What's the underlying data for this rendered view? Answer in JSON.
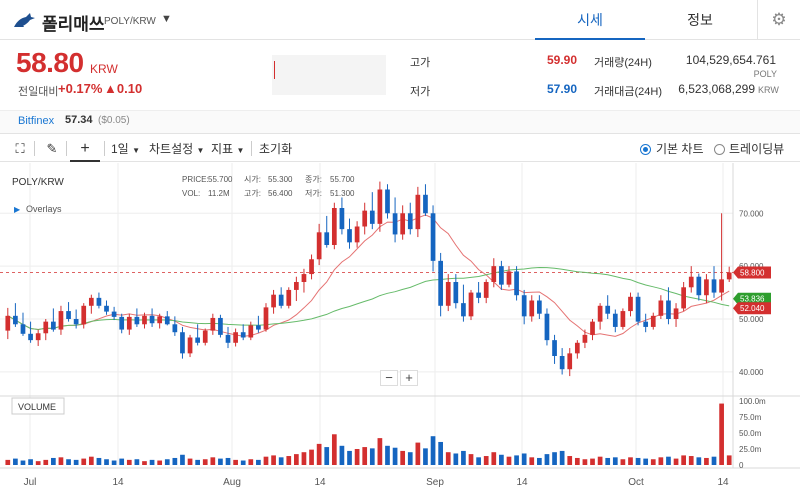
{
  "header": {
    "coin_name": "폴리매쓰",
    "pair": "POLY/KRW",
    "caret": "▼",
    "tabs": [
      {
        "label": "시세",
        "active": true
      },
      {
        "label": "정보",
        "active": false
      }
    ],
    "settings_icon": "gear-icon"
  },
  "price": {
    "current": "58.80",
    "unit": "KRW",
    "change_label": "전일대비",
    "change_rate": "+0.17%",
    "change_amount": "▲0.10",
    "color": "#d32f2f"
  },
  "stats": {
    "high_label": "고가",
    "high_value": "59.90",
    "low_label": "저가",
    "low_value": "57.90",
    "volume_label": "거래량(24H)",
    "volume_value": "104,529,654.761",
    "volume_unit": "POLY",
    "value_label": "거래대금(24H)",
    "value_value": "6,523,068,299",
    "value_unit": "KRW"
  },
  "exchange": {
    "name": "Bitfinex",
    "price": "57.34",
    "diff": "($0.05)"
  },
  "toolbar": {
    "interval": "1일",
    "chart_settings": "차트설정",
    "indicators": "지표",
    "reset": "초기화",
    "basic_chart": "기본 차트",
    "tradingview": "트레이딩뷰",
    "selected_view": "basic_chart"
  },
  "chart_data": {
    "type": "candlestick",
    "title": "POLY/KRW",
    "overlays_label": "Overlays",
    "volume_label": "VOLUME",
    "legend": {
      "price_label": "PRICE:",
      "price": "55.700",
      "open_label": "시가:",
      "open": "55.300",
      "close_label": "종가:",
      "close": "55.700",
      "vol_label": "VOL:",
      "vol": "11.2M",
      "high_label": "고가:",
      "high": "56.400",
      "low_label": "저가:",
      "low": "51.300"
    },
    "x_ticks": [
      "Jul",
      "14",
      "Aug",
      "14",
      "Sep",
      "14",
      "Oct",
      "14"
    ],
    "y_ticks": [
      "70.000",
      "60.000",
      "50.000",
      "40.000"
    ],
    "y_range": [
      36,
      78
    ],
    "volume_ticks": [
      "100.0m",
      "75.0m",
      "50.0m",
      "25.0m",
      "0"
    ],
    "volume_range": [
      0,
      100
    ],
    "price_tags": [
      {
        "value": 58.8,
        "label": "58.800",
        "color": "#d32f2f"
      },
      {
        "value": 53.836,
        "label": "53.836",
        "color": "#2e9e2e"
      },
      {
        "value": 52.04,
        "label": "52.040",
        "color": "#d32f2f"
      }
    ],
    "current_price": 58.8,
    "ma_short_color": "#e57373",
    "ma_long_color": "#66bb6a",
    "up_color": "#d32f2f",
    "down_color": "#1565c0",
    "candles": [
      {
        "o": 47.8,
        "h": 52.1,
        "l": 46.2,
        "c": 50.6,
        "v": 8
      },
      {
        "o": 50.6,
        "h": 53.0,
        "l": 48.5,
        "c": 49.0,
        "v": 10
      },
      {
        "o": 49.0,
        "h": 51.2,
        "l": 46.8,
        "c": 47.2,
        "v": 7
      },
      {
        "o": 47.2,
        "h": 49.5,
        "l": 45.5,
        "c": 46.0,
        "v": 9
      },
      {
        "o": 46.0,
        "h": 48.0,
        "l": 44.9,
        "c": 47.3,
        "v": 6
      },
      {
        "o": 47.3,
        "h": 50.0,
        "l": 46.0,
        "c": 49.5,
        "v": 8
      },
      {
        "o": 49.5,
        "h": 52.0,
        "l": 47.6,
        "c": 48.0,
        "v": 11
      },
      {
        "o": 48.0,
        "h": 52.5,
        "l": 47.0,
        "c": 51.5,
        "v": 12
      },
      {
        "o": 51.5,
        "h": 53.2,
        "l": 49.5,
        "c": 50.0,
        "v": 9
      },
      {
        "o": 50.0,
        "h": 51.8,
        "l": 48.2,
        "c": 49.0,
        "v": 8
      },
      {
        "o": 49.0,
        "h": 53.0,
        "l": 48.2,
        "c": 52.5,
        "v": 10
      },
      {
        "o": 52.5,
        "h": 54.6,
        "l": 51.0,
        "c": 54.0,
        "v": 13
      },
      {
        "o": 54.0,
        "h": 55.0,
        "l": 52.0,
        "c": 52.5,
        "v": 11
      },
      {
        "o": 52.5,
        "h": 53.5,
        "l": 50.8,
        "c": 51.4,
        "v": 9
      },
      {
        "o": 51.4,
        "h": 52.3,
        "l": 49.8,
        "c": 50.4,
        "v": 7
      },
      {
        "o": 50.4,
        "h": 51.0,
        "l": 47.3,
        "c": 48.0,
        "v": 10
      },
      {
        "o": 48.0,
        "h": 51.0,
        "l": 47.0,
        "c": 50.4,
        "v": 8
      },
      {
        "o": 50.4,
        "h": 52.0,
        "l": 48.5,
        "c": 49.0,
        "v": 9
      },
      {
        "o": 49.0,
        "h": 51.2,
        "l": 48.2,
        "c": 50.6,
        "v": 6
      },
      {
        "o": 50.6,
        "h": 52.0,
        "l": 48.5,
        "c": 49.2,
        "v": 8
      },
      {
        "o": 49.2,
        "h": 51.0,
        "l": 48.2,
        "c": 50.5,
        "v": 7
      },
      {
        "o": 50.5,
        "h": 51.5,
        "l": 48.8,
        "c": 49.0,
        "v": 9
      },
      {
        "o": 49.0,
        "h": 50.5,
        "l": 46.8,
        "c": 47.5,
        "v": 11
      },
      {
        "o": 47.5,
        "h": 48.5,
        "l": 42.5,
        "c": 43.5,
        "v": 16
      },
      {
        "o": 43.5,
        "h": 47.0,
        "l": 42.8,
        "c": 46.5,
        "v": 10
      },
      {
        "o": 46.5,
        "h": 49.0,
        "l": 45.0,
        "c": 45.5,
        "v": 8
      },
      {
        "o": 45.5,
        "h": 48.2,
        "l": 45.0,
        "c": 47.8,
        "v": 9
      },
      {
        "o": 47.8,
        "h": 51.0,
        "l": 47.0,
        "c": 50.2,
        "v": 12
      },
      {
        "o": 50.2,
        "h": 50.8,
        "l": 46.5,
        "c": 47.0,
        "v": 10
      },
      {
        "o": 47.0,
        "h": 48.5,
        "l": 44.5,
        "c": 45.5,
        "v": 11
      },
      {
        "o": 45.5,
        "h": 48.2,
        "l": 44.8,
        "c": 47.5,
        "v": 8
      },
      {
        "o": 47.5,
        "h": 49.0,
        "l": 46.0,
        "c": 46.5,
        "v": 7
      },
      {
        "o": 46.5,
        "h": 49.5,
        "l": 46.0,
        "c": 48.8,
        "v": 9
      },
      {
        "o": 48.8,
        "h": 50.6,
        "l": 47.4,
        "c": 48.0,
        "v": 8
      },
      {
        "o": 48.0,
        "h": 53.0,
        "l": 47.6,
        "c": 52.2,
        "v": 13
      },
      {
        "o": 52.2,
        "h": 55.5,
        "l": 51.0,
        "c": 54.6,
        "v": 15
      },
      {
        "o": 54.6,
        "h": 56.0,
        "l": 52.0,
        "c": 52.5,
        "v": 12
      },
      {
        "o": 52.5,
        "h": 56.0,
        "l": 52.0,
        "c": 55.5,
        "v": 14
      },
      {
        "o": 55.5,
        "h": 58.0,
        "l": 53.4,
        "c": 57.0,
        "v": 17
      },
      {
        "o": 57.0,
        "h": 59.5,
        "l": 55.0,
        "c": 58.5,
        "v": 20
      },
      {
        "o": 58.5,
        "h": 62.2,
        "l": 57.5,
        "c": 61.3,
        "v": 24
      },
      {
        "o": 61.3,
        "h": 68.0,
        "l": 60.2,
        "c": 66.4,
        "v": 33
      },
      {
        "o": 66.4,
        "h": 69.5,
        "l": 63.5,
        "c": 64.0,
        "v": 28
      },
      {
        "o": 64.0,
        "h": 72.0,
        "l": 63.2,
        "c": 71.0,
        "v": 48
      },
      {
        "o": 71.0,
        "h": 73.0,
        "l": 66.0,
        "c": 67.0,
        "v": 30
      },
      {
        "o": 67.0,
        "h": 69.0,
        "l": 63.3,
        "c": 64.5,
        "v": 22
      },
      {
        "o": 64.5,
        "h": 68.5,
        "l": 63.5,
        "c": 67.5,
        "v": 25
      },
      {
        "o": 67.5,
        "h": 72.0,
        "l": 66.0,
        "c": 70.5,
        "v": 28
      },
      {
        "o": 70.5,
        "h": 74.0,
        "l": 67.0,
        "c": 68.0,
        "v": 26
      },
      {
        "o": 68.0,
        "h": 76.0,
        "l": 66.5,
        "c": 74.5,
        "v": 42
      },
      {
        "o": 74.5,
        "h": 75.5,
        "l": 69.0,
        "c": 70.0,
        "v": 30
      },
      {
        "o": 70.0,
        "h": 73.0,
        "l": 64.5,
        "c": 66.0,
        "v": 27
      },
      {
        "o": 66.0,
        "h": 71.5,
        "l": 65.0,
        "c": 70.0,
        "v": 22
      },
      {
        "o": 70.0,
        "h": 72.0,
        "l": 66.0,
        "c": 67.0,
        "v": 20
      },
      {
        "o": 67.0,
        "h": 75.0,
        "l": 65.5,
        "c": 73.5,
        "v": 35
      },
      {
        "o": 73.5,
        "h": 75.5,
        "l": 69.5,
        "c": 70.0,
        "v": 26
      },
      {
        "o": 70.0,
        "h": 71.5,
        "l": 59.0,
        "c": 61.0,
        "v": 45
      },
      {
        "o": 61.0,
        "h": 62.5,
        "l": 50.5,
        "c": 52.5,
        "v": 36
      },
      {
        "o": 52.5,
        "h": 58.5,
        "l": 51.5,
        "c": 57.0,
        "v": 20
      },
      {
        "o": 57.0,
        "h": 58.5,
        "l": 52.0,
        "c": 53.0,
        "v": 18
      },
      {
        "o": 53.0,
        "h": 56.5,
        "l": 49.5,
        "c": 50.5,
        "v": 22
      },
      {
        "o": 50.5,
        "h": 55.5,
        "l": 49.8,
        "c": 55.0,
        "v": 17
      },
      {
        "o": 55.0,
        "h": 57.0,
        "l": 53.0,
        "c": 54.0,
        "v": 12
      },
      {
        "o": 54.0,
        "h": 57.5,
        "l": 53.0,
        "c": 57.0,
        "v": 14
      },
      {
        "o": 57.0,
        "h": 61.5,
        "l": 56.0,
        "c": 60.0,
        "v": 20
      },
      {
        "o": 60.0,
        "h": 61.0,
        "l": 55.5,
        "c": 56.5,
        "v": 16
      },
      {
        "o": 56.5,
        "h": 60.0,
        "l": 56.0,
        "c": 59.0,
        "v": 13
      },
      {
        "o": 59.0,
        "h": 60.0,
        "l": 53.5,
        "c": 54.5,
        "v": 15
      },
      {
        "o": 54.5,
        "h": 55.5,
        "l": 49.0,
        "c": 50.5,
        "v": 18
      },
      {
        "o": 50.5,
        "h": 54.5,
        "l": 49.5,
        "c": 53.5,
        "v": 12
      },
      {
        "o": 53.5,
        "h": 54.5,
        "l": 50.0,
        "c": 51.0,
        "v": 11
      },
      {
        "o": 51.0,
        "h": 52.0,
        "l": 45.0,
        "c": 46.0,
        "v": 17
      },
      {
        "o": 46.0,
        "h": 47.0,
        "l": 41.5,
        "c": 43.0,
        "v": 20
      },
      {
        "o": 43.0,
        "h": 44.5,
        "l": 39.5,
        "c": 40.5,
        "v": 22
      },
      {
        "o": 40.5,
        "h": 44.5,
        "l": 39.2,
        "c": 43.5,
        "v": 14
      },
      {
        "o": 43.5,
        "h": 46.0,
        "l": 42.5,
        "c": 45.5,
        "v": 11
      },
      {
        "o": 45.5,
        "h": 48.0,
        "l": 44.5,
        "c": 47.0,
        "v": 9
      },
      {
        "o": 47.0,
        "h": 50.0,
        "l": 46.0,
        "c": 49.5,
        "v": 10
      },
      {
        "o": 49.5,
        "h": 53.0,
        "l": 48.0,
        "c": 52.5,
        "v": 13
      },
      {
        "o": 52.5,
        "h": 54.5,
        "l": 50.0,
        "c": 51.0,
        "v": 11
      },
      {
        "o": 51.0,
        "h": 51.8,
        "l": 47.5,
        "c": 48.5,
        "v": 12
      },
      {
        "o": 48.5,
        "h": 52.0,
        "l": 48.0,
        "c": 51.5,
        "v": 9
      },
      {
        "o": 51.5,
        "h": 55.0,
        "l": 50.5,
        "c": 54.2,
        "v": 12
      },
      {
        "o": 54.2,
        "h": 55.0,
        "l": 48.8,
        "c": 49.5,
        "v": 11
      },
      {
        "o": 49.5,
        "h": 51.0,
        "l": 47.5,
        "c": 48.5,
        "v": 10
      },
      {
        "o": 48.5,
        "h": 51.2,
        "l": 48.0,
        "c": 50.6,
        "v": 9
      },
      {
        "o": 50.6,
        "h": 54.5,
        "l": 50.0,
        "c": 53.5,
        "v": 12
      },
      {
        "o": 53.5,
        "h": 56.0,
        "l": 49.0,
        "c": 50.0,
        "v": 13
      },
      {
        "o": 50.0,
        "h": 53.0,
        "l": 48.5,
        "c": 52.0,
        "v": 10
      },
      {
        "o": 52.0,
        "h": 57.0,
        "l": 51.5,
        "c": 56.0,
        "v": 15
      },
      {
        "o": 56.0,
        "h": 60.0,
        "l": 55.0,
        "c": 58.0,
        "v": 14
      },
      {
        "o": 58.0,
        "h": 58.6,
        "l": 53.5,
        "c": 54.5,
        "v": 12
      },
      {
        "o": 54.5,
        "h": 58.5,
        "l": 53.0,
        "c": 57.5,
        "v": 11
      },
      {
        "o": 57.5,
        "h": 60.0,
        "l": 54.0,
        "c": 55.0,
        "v": 13
      },
      {
        "o": 55.0,
        "h": 70.0,
        "l": 53.5,
        "c": 57.5,
        "v": 96
      },
      {
        "o": 57.5,
        "h": 59.9,
        "l": 57.0,
        "c": 58.8,
        "v": 15
      }
    ]
  }
}
